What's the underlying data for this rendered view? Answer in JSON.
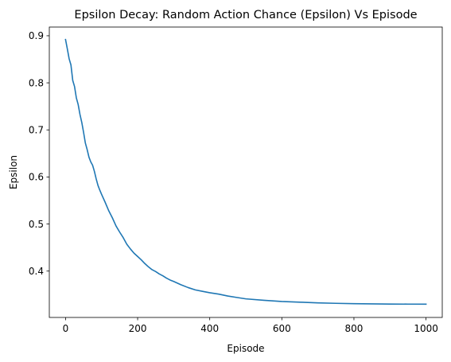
{
  "chart_data": {
    "type": "line",
    "title": "Epsilon Decay: Random Action Chance (Epsilon) Vs Episode",
    "xlabel": "Episode",
    "ylabel": "Epsilon",
    "xlim": [
      -45,
      1045
    ],
    "ylim": [
      0.3015,
      0.9185
    ],
    "xticks": [
      0,
      200,
      400,
      600,
      800,
      1000
    ],
    "yticks": [
      0.4,
      0.5,
      0.6,
      0.7,
      0.8,
      0.9
    ],
    "xtick_labels": [
      "0",
      "200",
      "400",
      "600",
      "800",
      "1000"
    ],
    "ytick_labels": [
      "0.4",
      "0.5",
      "0.6",
      "0.7",
      "0.8",
      "0.9"
    ],
    "grid": false,
    "legend": "none",
    "series": [
      {
        "color": "#1f77b4",
        "x": [
          0,
          5,
          10,
          15,
          20,
          25,
          30,
          35,
          40,
          45,
          50,
          55,
          60,
          65,
          70,
          75,
          80,
          85,
          90,
          95,
          100,
          110,
          120,
          130,
          140,
          150,
          160,
          170,
          180,
          190,
          200,
          210,
          220,
          230,
          240,
          250,
          260,
          270,
          280,
          290,
          300,
          320,
          340,
          360,
          380,
          400,
          425,
          450,
          475,
          500,
          550,
          600,
          650,
          700,
          750,
          800,
          850,
          900,
          950,
          1000
        ],
        "y": [
          0.892,
          0.872,
          0.851,
          0.838,
          0.805,
          0.792,
          0.768,
          0.754,
          0.733,
          0.716,
          0.695,
          0.672,
          0.658,
          0.642,
          0.632,
          0.625,
          0.612,
          0.596,
          0.582,
          0.572,
          0.563,
          0.546,
          0.528,
          0.513,
          0.496,
          0.483,
          0.471,
          0.457,
          0.447,
          0.438,
          0.431,
          0.424,
          0.416,
          0.409,
          0.403,
          0.399,
          0.394,
          0.39,
          0.385,
          0.381,
          0.378,
          0.371,
          0.365,
          0.36,
          0.357,
          0.354,
          0.351,
          0.347,
          0.344,
          0.341,
          0.338,
          0.3355,
          0.334,
          0.3325,
          0.3315,
          0.3308,
          0.3303,
          0.33,
          0.3298,
          0.3297
        ]
      }
    ]
  }
}
